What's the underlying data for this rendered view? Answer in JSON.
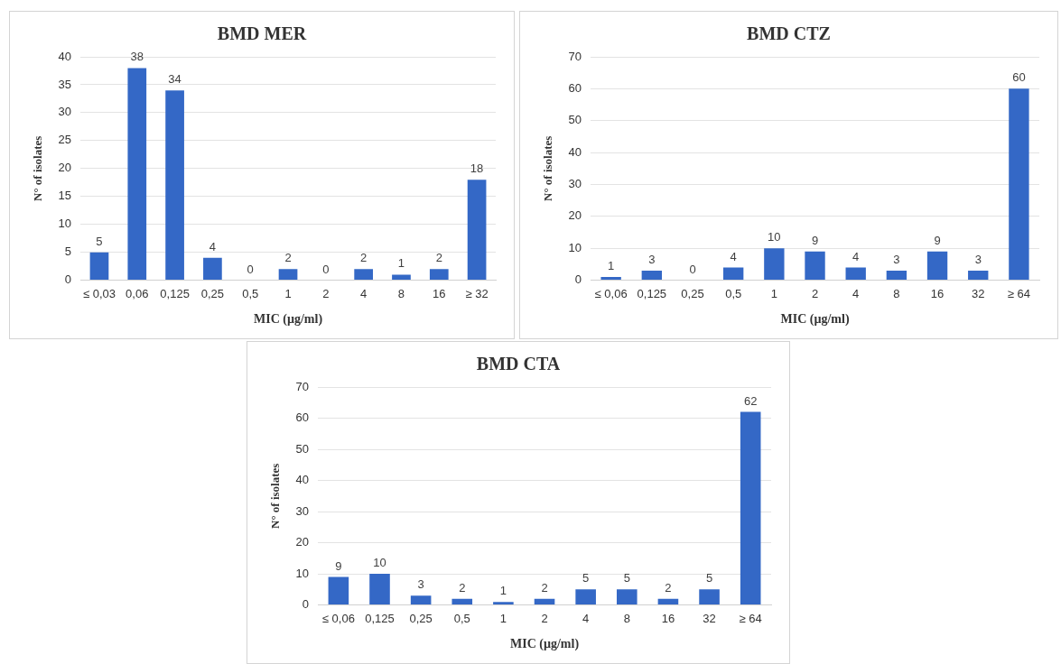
{
  "chart_data": [
    {
      "type": "bar",
      "title": "BMD MER",
      "xlabel": "MIC (µg/ml)",
      "ylabel": "N° of isolates",
      "categories": [
        "≤ 0,03",
        "0,06",
        "0,125",
        "0,25",
        "0,5",
        "1",
        "2",
        "4",
        "8",
        "16",
        "≥ 32"
      ],
      "values": [
        5,
        38,
        34,
        4,
        0,
        2,
        0,
        2,
        1,
        2,
        18
      ],
      "color": "#3468c6",
      "ylim": [
        0,
        40
      ],
      "yticks": [
        0,
        5,
        10,
        15,
        20,
        25,
        30,
        35,
        40
      ],
      "grid": "y",
      "data_labels": true,
      "legend": false
    },
    {
      "type": "bar",
      "title": "BMD CTZ",
      "xlabel": "MIC (µg/ml)",
      "ylabel": "N° of isolates",
      "categories": [
        "≤ 0,06",
        "0,125",
        "0,25",
        "0,5",
        "1",
        "2",
        "4",
        "8",
        "16",
        "32",
        "≥ 64"
      ],
      "values": [
        1,
        3,
        0,
        4,
        10,
        9,
        4,
        3,
        9,
        3,
        60
      ],
      "color": "#3468c6",
      "ylim": [
        0,
        70
      ],
      "yticks": [
        0,
        10,
        20,
        30,
        40,
        50,
        60,
        70
      ],
      "grid": "y",
      "data_labels": true,
      "legend": false
    },
    {
      "type": "bar",
      "title": "BMD CTA",
      "xlabel": "MIC (µg/ml)",
      "ylabel": "N° of isolates",
      "categories": [
        "≤ 0,06",
        "0,125",
        "0,25",
        "0,5",
        "1",
        "2",
        "4",
        "8",
        "16",
        "32",
        "≥ 64"
      ],
      "values": [
        9,
        10,
        3,
        2,
        1,
        2,
        5,
        5,
        2,
        5,
        62
      ],
      "color": "#3468c6",
      "ylim": [
        0,
        70
      ],
      "yticks": [
        0,
        10,
        20,
        30,
        40,
        50,
        60,
        70
      ],
      "grid": "y",
      "data_labels": true,
      "legend": false
    }
  ]
}
